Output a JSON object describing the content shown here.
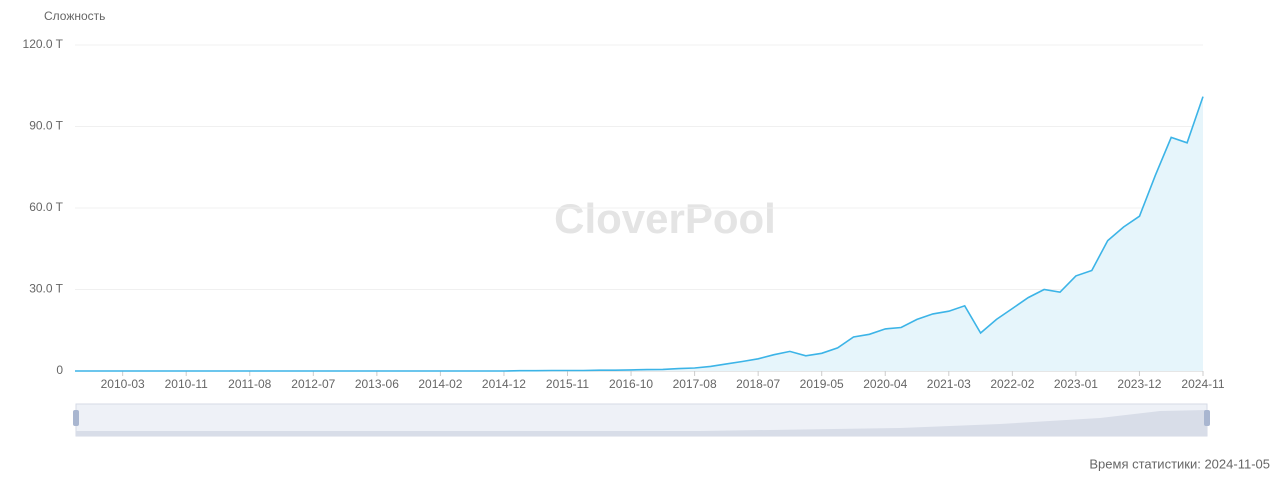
{
  "chart_data": {
    "type": "area",
    "y_label": "Сложность",
    "watermark": "CloverPool",
    "footer": "Время статистики: 2024-11-05",
    "color": "#3cb4e7",
    "fill": "#e6f5fb",
    "grid": true,
    "ylim": [
      0,
      120
    ],
    "yticks": [
      0,
      {
        "value": 30,
        "label": "30.0 T"
      },
      {
        "value": 60,
        "label": "60.0 T"
      },
      {
        "value": 90,
        "label": "90.0 T"
      },
      {
        "value": 120,
        "label": "120.0 T"
      }
    ],
    "categories": [
      null,
      null,
      null,
      "2010-03",
      null,
      null,
      null,
      "2010-11",
      null,
      null,
      null,
      "2011-08",
      null,
      null,
      null,
      "2012-07",
      null,
      null,
      null,
      "2013-06",
      null,
      null,
      null,
      "2014-02",
      null,
      null,
      null,
      "2014-12",
      null,
      null,
      null,
      "2015-11",
      null,
      null,
      null,
      "2016-10",
      null,
      null,
      null,
      "2017-08",
      null,
      null,
      null,
      "2018-07",
      null,
      null,
      null,
      "2019-05",
      null,
      null,
      null,
      "2020-04",
      null,
      null,
      null,
      "2021-03",
      null,
      null,
      null,
      "2022-02",
      null,
      null,
      null,
      "2023-01",
      null,
      null,
      null,
      "2023-12",
      null,
      null,
      null,
      "2024-11"
    ],
    "values": [
      0,
      0,
      0,
      0,
      0,
      0,
      0,
      0,
      0,
      0,
      0,
      0,
      0,
      0,
      0,
      0,
      0,
      0,
      0,
      0,
      0,
      0,
      0,
      0,
      0,
      0,
      0,
      0,
      0.1,
      0.1,
      0.2,
      0.2,
      0.2,
      0.3,
      0.3,
      0.4,
      0.5,
      0.6,
      0.9,
      1.1,
      1.7,
      2.6,
      3.5,
      4.5,
      6,
      7.2,
      5.6,
      6.5,
      8.5,
      12.5,
      13.5,
      15.5,
      16,
      19,
      21,
      22,
      24,
      14,
      19,
      23,
      27,
      30,
      29,
      35,
      37,
      48,
      53,
      57,
      72,
      86,
      84,
      101
    ]
  }
}
